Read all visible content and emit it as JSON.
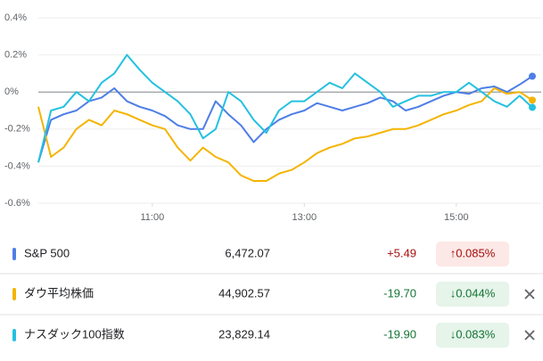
{
  "chart_data": {
    "type": "line",
    "x": [
      570,
      580,
      590,
      600,
      610,
      620,
      630,
      640,
      650,
      660,
      670,
      680,
      690,
      700,
      710,
      720,
      730,
      740,
      750,
      760,
      770,
      780,
      790,
      800,
      810,
      820,
      830,
      840,
      850,
      860,
      870,
      880,
      890,
      900,
      910,
      920,
      930,
      940,
      950,
      960
    ],
    "xlim": [
      570,
      960
    ],
    "xticks": [
      {
        "value": 660,
        "label": "11:00"
      },
      {
        "value": 780,
        "label": "13:00"
      },
      {
        "value": 900,
        "label": "15:00"
      }
    ],
    "ylim": [
      -0.6,
      0.4
    ],
    "yticks": [
      {
        "value": 0.4,
        "label": "0.4%"
      },
      {
        "value": 0.2,
        "label": "0.2%"
      },
      {
        "value": 0,
        "label": "0%"
      },
      {
        "value": -0.2,
        "label": "-0.2%"
      },
      {
        "value": -0.4,
        "label": "-0.4%"
      },
      {
        "value": -0.6,
        "label": "-0.6%"
      }
    ],
    "grid": true,
    "series": [
      {
        "name": "S&P 500",
        "color": "#4e7ee6",
        "values": [
          -0.38,
          -0.15,
          -0.12,
          -0.1,
          -0.05,
          -0.03,
          0.02,
          -0.05,
          -0.08,
          -0.1,
          -0.13,
          -0.18,
          -0.2,
          -0.2,
          -0.05,
          -0.12,
          -0.18,
          -0.27,
          -0.2,
          -0.15,
          -0.12,
          -0.1,
          -0.06,
          -0.08,
          -0.1,
          -0.08,
          -0.06,
          -0.03,
          -0.05,
          -0.1,
          -0.08,
          -0.05,
          -0.02,
          0.0,
          -0.01,
          0.02,
          0.03,
          0.0,
          0.04,
          0.085
        ]
      },
      {
        "name": "ダウ平均株価",
        "color": "#f4b400",
        "values": [
          -0.08,
          -0.35,
          -0.3,
          -0.2,
          -0.15,
          -0.18,
          -0.1,
          -0.12,
          -0.15,
          -0.18,
          -0.2,
          -0.3,
          -0.37,
          -0.3,
          -0.35,
          -0.38,
          -0.45,
          -0.48,
          -0.48,
          -0.44,
          -0.42,
          -0.38,
          -0.33,
          -0.3,
          -0.28,
          -0.25,
          -0.24,
          -0.22,
          -0.2,
          -0.2,
          -0.18,
          -0.15,
          -0.12,
          -0.1,
          -0.07,
          -0.05,
          0.02,
          -0.01,
          0.0,
          -0.044
        ]
      },
      {
        "name": "ナスダック100指数",
        "color": "#24c1e0",
        "values": [
          -0.38,
          -0.1,
          -0.08,
          0.0,
          -0.05,
          0.05,
          0.1,
          0.2,
          0.12,
          0.05,
          0.0,
          -0.05,
          -0.12,
          -0.25,
          -0.2,
          0.0,
          -0.05,
          -0.15,
          -0.22,
          -0.1,
          -0.05,
          -0.05,
          0.0,
          0.05,
          0.02,
          0.1,
          0.05,
          0.0,
          -0.08,
          -0.05,
          -0.02,
          -0.02,
          0.0,
          0.0,
          0.05,
          0.0,
          -0.05,
          -0.08,
          -0.02,
          -0.083
        ]
      }
    ]
  },
  "table": {
    "rows": [
      {
        "price": "6,472.07",
        "change": "+5.49",
        "percent": "↑0.085%"
      },
      {
        "price": "44,902.57",
        "change": "-19.70",
        "percent": "↓0.044%"
      },
      {
        "price": "23,829.14",
        "change": "-19.90",
        "percent": "↓0.083%"
      }
    ]
  }
}
